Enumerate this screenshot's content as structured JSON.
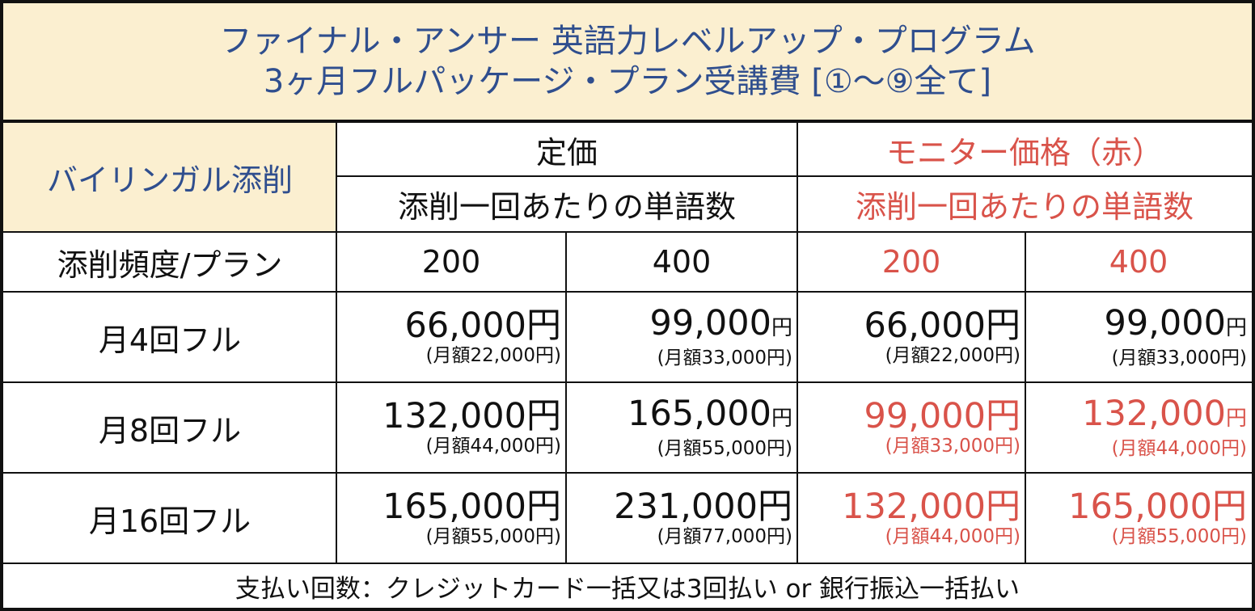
{
  "title": {
    "line1": "ファイナル・アンサー 英語力レベルアップ・プログラム",
    "line2": "3ヶ月フルパッケージ・プラン受講費 [①〜⑨全て]"
  },
  "header": {
    "service": "バイリンガル添削",
    "regular": "定価",
    "monitor": "モニター価格（赤）",
    "regular_words": "添削一回あたりの単語数",
    "monitor_words": "添削一回あたりの単語数",
    "freq_label": "添削頻度/プラン",
    "cols": [
      "200",
      "400",
      "200",
      "400"
    ]
  },
  "rows": [
    {
      "label": "月4回フル",
      "cells": [
        {
          "main": "66,000",
          "yen": "円",
          "sub": "(月額22,000円)"
        },
        {
          "main": "99,000",
          "yen": "円",
          "sub": "(月額33,000円)"
        },
        {
          "main": "66,000",
          "yen": "円",
          "sub": "(月額22,000円)"
        },
        {
          "main": "99,000",
          "yen": "円",
          "sub": "(月額33,000円)"
        }
      ]
    },
    {
      "label": "月8回フル",
      "cells": [
        {
          "main": "132,000",
          "yen": "円",
          "sub": "(月額44,000円)"
        },
        {
          "main": "165,000",
          "yen": "円",
          "sub": "(月額55,000円)"
        },
        {
          "main": "99,000",
          "yen": "円",
          "sub": "(月額33,000円)"
        },
        {
          "main": "132,000",
          "yen": "円",
          "sub": "(月額44,000円)"
        }
      ]
    },
    {
      "label": "月16回フル",
      "cells": [
        {
          "main": "165,000",
          "yen": "円",
          "sub": "(月額55,000円)"
        },
        {
          "main": "231,000",
          "yen": "円",
          "sub": "(月額77,000円)"
        },
        {
          "main": "132,000",
          "yen": "円",
          "sub": "(月額44,000円)"
        },
        {
          "main": "165,000",
          "yen": "円",
          "sub": "(月額55,000円)"
        }
      ]
    }
  ],
  "footer": "支払い回数：クレジットカード一括又は3回払い or 銀行振込一括払い",
  "colors": {
    "cream": "#fbefd0",
    "blue": "#2f4e8e",
    "red": "#d9534a",
    "line": "#111111"
  }
}
